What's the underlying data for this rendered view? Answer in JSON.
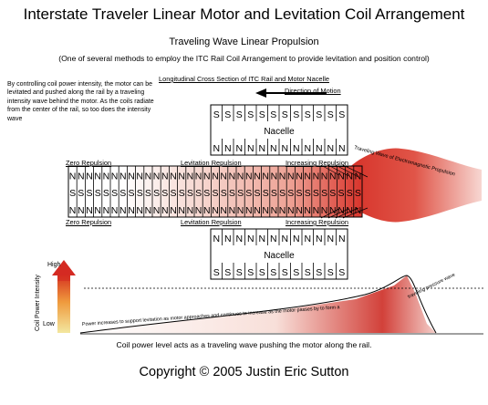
{
  "title": "Interstate Traveler Linear Motor and Levitation Coil Arrangement",
  "subtitle": "Traveling Wave Linear Propulsion",
  "subnote": "(One of several methods to employ the ITC Rail Coil Arrangement to provide levitation and position control)",
  "side_text": "By controlling coil power intensity, the motor can be levitated and pushed along the rail by a traveling intensity wave behind the motor.  As the coils radiate from the center of the rail, so too does the intensity wave",
  "cross_section_label": "Longitudinal Cross Section of ITC Rail and Motor Nacelle",
  "direction_label": "Direction of Motion",
  "top_nacelle": {
    "label": "Nacelle",
    "row_top": [
      "S",
      "S",
      "S",
      "S",
      "S",
      "S",
      "S",
      "S",
      "S",
      "S",
      "S",
      "S"
    ],
    "row_bottom": [
      "N",
      "N",
      "N",
      "N",
      "N",
      "N",
      "N",
      "N",
      "N",
      "N",
      "N",
      "N"
    ]
  },
  "bottom_nacelle": {
    "label": "Nacelle",
    "row_top": [
      "N",
      "N",
      "N",
      "N",
      "N",
      "N",
      "N",
      "N",
      "N",
      "N",
      "N",
      "N"
    ],
    "row_bottom": [
      "S",
      "S",
      "S",
      "S",
      "S",
      "S",
      "S",
      "S",
      "S",
      "S",
      "S",
      "S"
    ]
  },
  "rail": {
    "row_top": [
      "N",
      "N",
      "N",
      "N",
      "N",
      "N",
      "N",
      "N",
      "N",
      "N",
      "N",
      "N",
      "N",
      "N",
      "N",
      "N",
      "N",
      "N",
      "N",
      "N",
      "N",
      "N",
      "N",
      "N",
      "N",
      "N",
      "N",
      "N",
      "N",
      "N",
      "N",
      "N",
      "N",
      "N",
      "N"
    ],
    "row_middle": [
      "S",
      "S",
      "S",
      "S",
      "S",
      "S",
      "S",
      "S",
      "S",
      "S",
      "S",
      "S",
      "S",
      "S",
      "S",
      "S",
      "S",
      "S",
      "S",
      "S",
      "S",
      "S",
      "S",
      "S",
      "S",
      "S",
      "S",
      "S",
      "S",
      "S",
      "S",
      "S",
      "S",
      "S",
      "S"
    ],
    "row_bottom": [
      "N",
      "N",
      "N",
      "N",
      "N",
      "N",
      "N",
      "N",
      "N",
      "N",
      "N",
      "N",
      "N",
      "N",
      "N",
      "N",
      "N",
      "N",
      "N",
      "N",
      "N",
      "N",
      "N",
      "N",
      "N",
      "N",
      "N",
      "N",
      "N",
      "N",
      "N",
      "N",
      "N",
      "N",
      "N"
    ]
  },
  "zones_top": [
    "Zero Repulsion",
    "Levitation Repulsion",
    "Increasing Repulsion"
  ],
  "zones_bottom": [
    "Zero Repulsion",
    "Levitation Repulsion",
    "Increasing Repulsion"
  ],
  "wave_label": "Traveling Wave of Electromagnetic Propulsion",
  "graph": {
    "y_axis_label": "Coil Power Intensity",
    "high_label": "High",
    "low_label": "Low",
    "curve_label_1": "Power increases to support levitation as motor approaches and continues to increase as the motor passes by to form a",
    "curve_label_2": "traveling pressure wave"
  },
  "caption": "Coil power level acts as a traveling wave pushing the motor along the rail.",
  "copyright": "Copyright ©  2005  Justin Eric Sutton",
  "colors": {
    "wave": "#d9302b",
    "wave_light": "#f3c9c3",
    "accent": "#c0281e"
  }
}
